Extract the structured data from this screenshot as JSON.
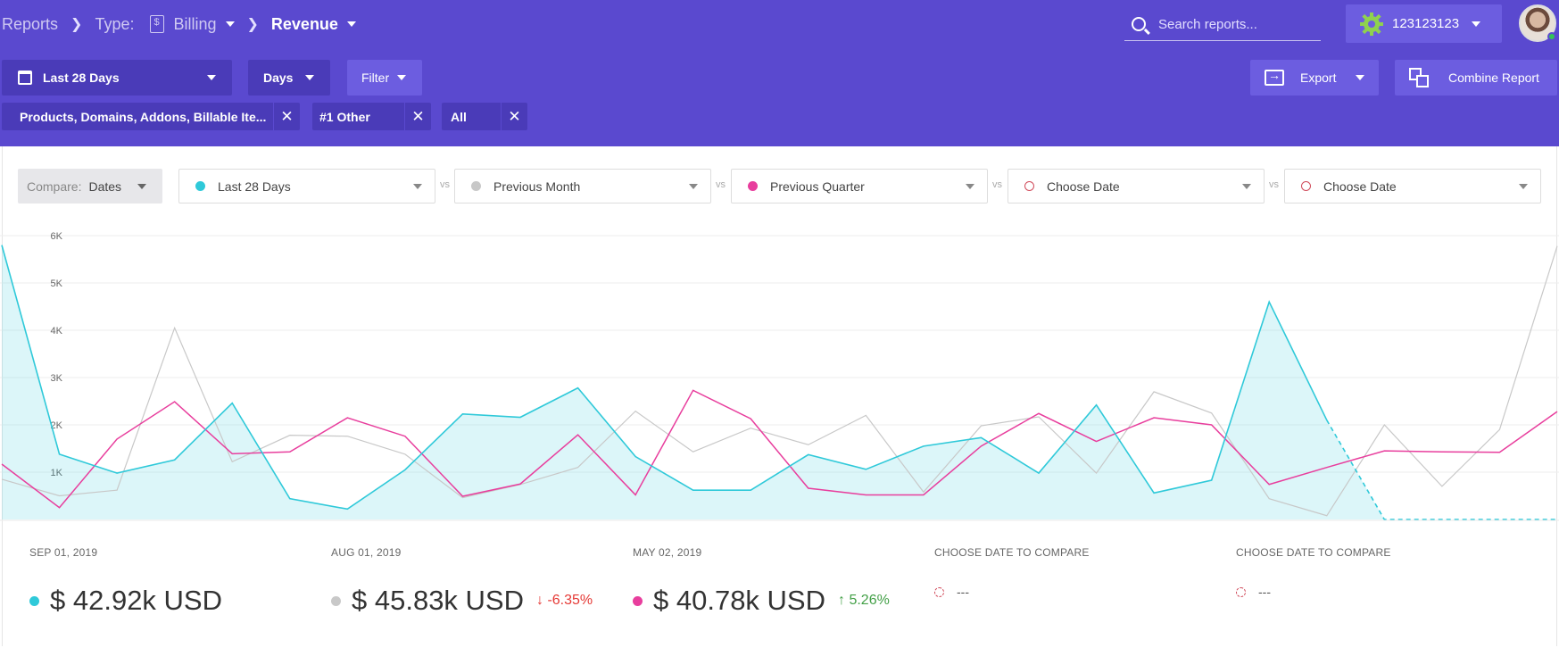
{
  "breadcrumb": {
    "reports": "Reports",
    "type_label": "Type:",
    "type_value": "Billing",
    "current": "Revenue"
  },
  "search": {
    "placeholder": "Search reports..."
  },
  "account": {
    "label": "123123123"
  },
  "toolbar": {
    "date_range": "Last 28 Days",
    "granularity": "Days",
    "filter": "Filter",
    "export": "Export",
    "combine": "Combine Report"
  },
  "chips": [
    {
      "label": "Products, Domains, Addons, Billable Ite..."
    },
    {
      "label": "#1 Other"
    },
    {
      "label": "All"
    }
  ],
  "compare": {
    "label": "Compare:",
    "value": "Dates",
    "vs": "vs",
    "periods": [
      {
        "label": "Last 28 Days",
        "color": "#2fc9d9",
        "style": "filled"
      },
      {
        "label": "Previous Month",
        "color": "#c8c8c8",
        "style": "filled"
      },
      {
        "label": "Previous Quarter",
        "color": "#e83e9d",
        "style": "filled"
      },
      {
        "label": "Choose Date",
        "color": "#d04a5a",
        "style": "ring"
      },
      {
        "label": "Choose Date",
        "color": "#d04a5a",
        "style": "ring"
      }
    ]
  },
  "chart_data": {
    "type": "line",
    "ylim": [
      0,
      6000
    ],
    "yticks": [
      "6K",
      "5K",
      "4K",
      "3K",
      "2K",
      "1K"
    ],
    "grid": true,
    "series": [
      {
        "color": "#2fc9d9",
        "fill": true,
        "values": [
          5800,
          1380,
          980,
          1260,
          2460,
          440,
          220,
          1050,
          2230,
          2160,
          2780,
          1330,
          620,
          620,
          1370,
          1060,
          1550,
          1730,
          980,
          2420,
          560,
          830,
          4600,
          2100,
          0,
          0,
          0,
          0
        ]
      },
      {
        "color": "#c8c8c8",
        "fill": false,
        "values": [
          850,
          500,
          620,
          4050,
          1220,
          1780,
          1760,
          1380,
          460,
          740,
          1100,
          2290,
          1430,
          1930,
          1580,
          2200,
          580,
          1980,
          2170,
          980,
          2700,
          2250,
          440,
          80,
          2000,
          700,
          1900,
          5780
        ]
      },
      {
        "color": "#e83e9d",
        "fill": false,
        "values": [
          1170,
          250,
          1700,
          2490,
          1390,
          1430,
          2150,
          1760,
          490,
          750,
          1790,
          520,
          2730,
          2130,
          660,
          520,
          520,
          1550,
          2240,
          1650,
          2150,
          2000,
          740,
          1100,
          1450,
          1430,
          1420,
          2280
        ]
      }
    ]
  },
  "summary": [
    {
      "date": "SEP 01, 2019",
      "amount": "$ 42.92k USD",
      "delta": "",
      "color": "#2fc9d9"
    },
    {
      "date": "AUG 01, 2019",
      "amount": "$ 45.83k USD",
      "delta": "↓ -6.35%",
      "delta_color": "#e53935",
      "color": "#c8c8c8"
    },
    {
      "date": "MAY 02, 2019",
      "amount": "$ 40.78k USD",
      "delta": "↑ 5.26%",
      "delta_color": "#43a047",
      "color": "#e83e9d"
    },
    {
      "date": "CHOOSE DATE TO COMPARE",
      "amount": "---"
    },
    {
      "date": "CHOOSE DATE TO COMPARE",
      "amount": "---"
    }
  ]
}
